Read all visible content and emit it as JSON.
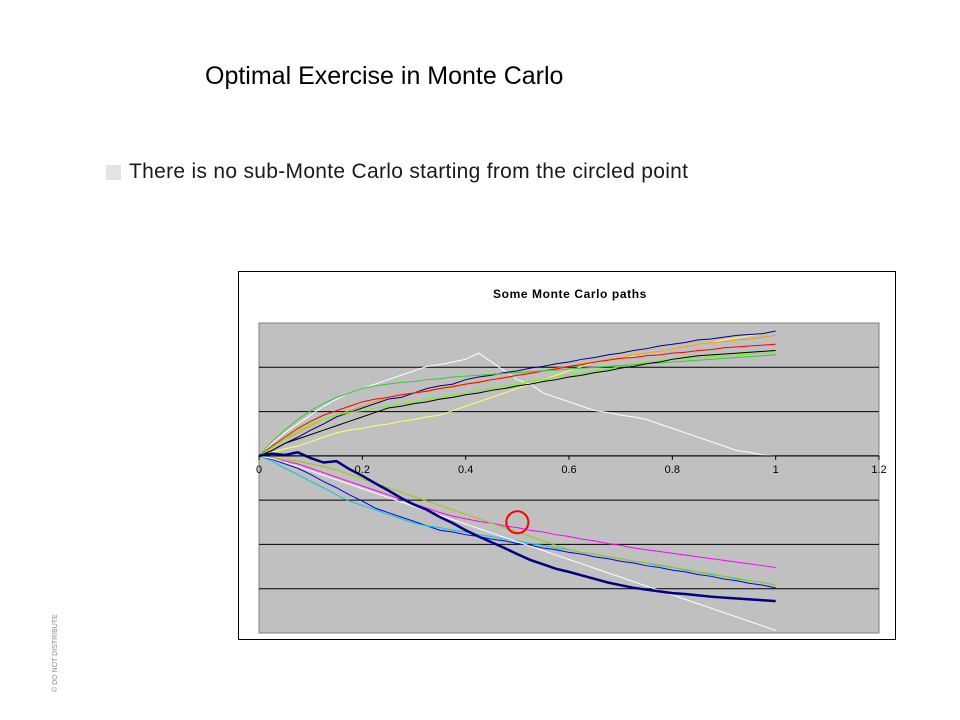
{
  "slide": {
    "title": "Optimal Exercise in Monte Carlo",
    "bullet": "There is no sub-Monte Carlo starting from the circled point",
    "side_note": "© DO NOT DISTRIBUTE"
  },
  "chart_data": {
    "type": "line",
    "title": "Some Monte Carlo paths",
    "xlabel": "",
    "ylabel": "",
    "xlim": [
      0,
      1.2
    ],
    "ylim": [
      -4,
      3
    ],
    "x_ticks": [
      "0",
      "0.2",
      "0.4",
      "0.6",
      "0.8",
      "1",
      "1.2"
    ],
    "grid": true,
    "legend": "none",
    "plot_background": "#c0c0c0",
    "n_steps": 40,
    "series": [
      {
        "color": "#ffffff",
        "values": [
          0,
          0.28,
          0.52,
          0.72,
          0.92,
          1.12,
          1.28,
          1.42,
          1.52,
          1.62,
          1.72,
          1.82,
          1.92,
          2.02,
          2.06,
          2.12,
          2.18,
          2.32,
          2.12,
          1.92,
          1.72,
          1.62,
          1.42,
          1.32,
          1.22,
          1.12,
          1.02,
          0.98,
          0.92,
          0.88,
          0.82,
          0.72,
          0.62,
          0.52,
          0.42,
          0.32,
          0.22,
          0.12,
          0.08,
          0.02,
          0
        ]
      },
      {
        "color": "#ffff66",
        "values": [
          0,
          0.08,
          0.16,
          0.22,
          0.32,
          0.42,
          0.52,
          0.58,
          0.62,
          0.68,
          0.72,
          0.78,
          0.82,
          0.88,
          0.92,
          1.02,
          1.12,
          1.22,
          1.32,
          1.42,
          1.52,
          1.62,
          1.72,
          1.82,
          1.92,
          2.02,
          2.12,
          2.16,
          2.22,
          2.26,
          2.32,
          2.36,
          2.42,
          2.46,
          2.52,
          2.56,
          2.62,
          2.66,
          2.72,
          2.76,
          2.82
        ]
      },
      {
        "color": "#000080",
        "values": [
          0,
          0.12,
          0.28,
          0.42,
          0.58,
          0.72,
          0.88,
          0.98,
          1.08,
          1.18,
          1.28,
          1.32,
          1.42,
          1.52,
          1.58,
          1.62,
          1.72,
          1.78,
          1.82,
          1.88,
          1.92,
          1.98,
          2.02,
          2.08,
          2.12,
          2.18,
          2.22,
          2.28,
          2.32,
          2.38,
          2.42,
          2.48,
          2.52,
          2.56,
          2.62,
          2.64,
          2.68,
          2.72,
          2.74,
          2.76,
          2.82
        ]
      },
      {
        "color": "#ff9900",
        "values": [
          0,
          0.18,
          0.38,
          0.52,
          0.68,
          0.82,
          0.92,
          1.02,
          1.12,
          1.22,
          1.32,
          1.38,
          1.42,
          1.48,
          1.52,
          1.58,
          1.62,
          1.68,
          1.72,
          1.78,
          1.82,
          1.88,
          1.92,
          1.98,
          2.02,
          2.08,
          2.12,
          2.18,
          2.22,
          2.28,
          2.32,
          2.36,
          2.42,
          2.46,
          2.52,
          2.56,
          2.58,
          2.62,
          2.64,
          2.68,
          2.72
        ]
      },
      {
        "color": "#ff0000",
        "values": [
          0,
          0.22,
          0.42,
          0.62,
          0.78,
          0.92,
          1.02,
          1.12,
          1.22,
          1.28,
          1.32,
          1.38,
          1.42,
          1.46,
          1.52,
          1.56,
          1.62,
          1.66,
          1.72,
          1.76,
          1.82,
          1.86,
          1.92,
          1.96,
          2.02,
          2.06,
          2.12,
          2.16,
          2.2,
          2.22,
          2.26,
          2.28,
          2.32,
          2.34,
          2.38,
          2.4,
          2.44,
          2.46,
          2.48,
          2.5,
          2.52
        ]
      },
      {
        "color": "#66ff00",
        "values": [
          0,
          0.18,
          0.38,
          0.58,
          0.72,
          0.82,
          0.92,
          0.98,
          1.02,
          1.08,
          1.12,
          1.18,
          1.22,
          1.28,
          1.32,
          1.38,
          1.42,
          1.48,
          1.52,
          1.58,
          1.62,
          1.68,
          1.72,
          1.78,
          1.82,
          1.86,
          1.92,
          1.96,
          2.02,
          2.06,
          2.12,
          2.14,
          2.18,
          2.2,
          2.22,
          2.24,
          2.26,
          2.28,
          2.3,
          2.32,
          2.32
        ]
      },
      {
        "color": "#33cc33",
        "values": [
          0,
          0.32,
          0.58,
          0.82,
          1.02,
          1.18,
          1.32,
          1.42,
          1.52,
          1.58,
          1.62,
          1.66,
          1.68,
          1.72,
          1.74,
          1.78,
          1.8,
          1.82,
          1.84,
          1.86,
          1.88,
          1.9,
          1.92,
          1.94,
          1.96,
          1.98,
          2.0,
          2.02,
          2.04,
          2.06,
          2.08,
          2.1,
          2.12,
          2.14,
          2.16,
          2.18,
          2.2,
          2.22,
          2.24,
          2.26,
          2.28
        ]
      },
      {
        "color": "#000000",
        "values": [
          0,
          0.12,
          0.28,
          0.38,
          0.48,
          0.58,
          0.68,
          0.78,
          0.88,
          0.98,
          1.08,
          1.12,
          1.18,
          1.22,
          1.28,
          1.32,
          1.38,
          1.42,
          1.48,
          1.52,
          1.58,
          1.62,
          1.68,
          1.72,
          1.78,
          1.82,
          1.88,
          1.92,
          1.98,
          2.02,
          2.08,
          2.12,
          2.18,
          2.22,
          2.26,
          2.28,
          2.3,
          2.32,
          2.34,
          2.36,
          2.38
        ]
      },
      {
        "color": "#0000ff",
        "values": [
          0,
          -0.08,
          -0.18,
          -0.28,
          -0.42,
          -0.58,
          -0.72,
          -0.88,
          -1.02,
          -1.18,
          -1.28,
          -1.38,
          -1.48,
          -1.58,
          -1.68,
          -1.72,
          -1.78,
          -1.82,
          -1.88,
          -1.92,
          -1.98,
          -2.02,
          -2.08,
          -2.12,
          -2.18,
          -2.22,
          -2.28,
          -2.32,
          -2.38,
          -2.42,
          -2.48,
          -2.52,
          -2.58,
          -2.62,
          -2.68,
          -2.72,
          -2.78,
          -2.82,
          -2.88,
          -2.92,
          -2.98
        ]
      },
      {
        "color": "#00cccc",
        "values": [
          0,
          -0.12,
          -0.28,
          -0.42,
          -0.58,
          -0.72,
          -0.88,
          -1.02,
          -1.12,
          -1.22,
          -1.32,
          -1.42,
          -1.52,
          -1.58,
          -1.62,
          -1.68,
          -1.72,
          -1.78,
          -1.82,
          -1.88,
          -1.92,
          -1.98,
          -2.02,
          -2.08,
          -2.12,
          -2.18,
          -2.22,
          -2.28,
          -2.32,
          -2.38,
          -2.42,
          -2.48,
          -2.52,
          -2.58,
          -2.62,
          -2.68,
          -2.72,
          -2.78,
          -2.82,
          -2.86,
          -2.92
        ]
      },
      {
        "color": "#ff00ff",
        "values": [
          0,
          -0.06,
          -0.12,
          -0.18,
          -0.28,
          -0.38,
          -0.48,
          -0.58,
          -0.68,
          -0.78,
          -0.88,
          -0.98,
          -1.08,
          -1.18,
          -1.28,
          -1.36,
          -1.42,
          -1.48,
          -1.52,
          -1.58,
          -1.62,
          -1.68,
          -1.72,
          -1.78,
          -1.82,
          -1.88,
          -1.92,
          -1.98,
          -2.02,
          -2.08,
          -2.12,
          -2.16,
          -2.2,
          -2.24,
          -2.28,
          -2.32,
          -2.36,
          -2.4,
          -2.44,
          -2.48,
          -2.52
        ]
      },
      {
        "color": "#99cc00",
        "values": [
          0,
          -0.04,
          -0.08,
          -0.12,
          -0.18,
          -0.24,
          -0.32,
          -0.42,
          -0.52,
          -0.62,
          -0.72,
          -0.82,
          -0.92,
          -1.02,
          -1.12,
          -1.22,
          -1.32,
          -1.42,
          -1.52,
          -1.62,
          -1.72,
          -1.82,
          -1.92,
          -2.02,
          -2.12,
          -2.18,
          -2.22,
          -2.28,
          -2.32,
          -2.38,
          -2.42,
          -2.46,
          -2.52,
          -2.56,
          -2.62,
          -2.66,
          -2.72,
          -2.76,
          -2.82,
          -2.86,
          -2.92
        ]
      },
      {
        "color": "#ffffff",
        "values": [
          0,
          -0.06,
          -0.14,
          -0.24,
          -0.34,
          -0.44,
          -0.54,
          -0.64,
          -0.74,
          -0.84,
          -0.94,
          -1.04,
          -1.14,
          -1.24,
          -1.34,
          -1.44,
          -1.54,
          -1.64,
          -1.74,
          -1.84,
          -1.94,
          -2.04,
          -2.14,
          -2.24,
          -2.34,
          -2.44,
          -2.54,
          -2.64,
          -2.74,
          -2.84,
          -2.94,
          -3.04,
          -3.14,
          -3.24,
          -3.34,
          -3.44,
          -3.54,
          -3.64,
          -3.74,
          -3.84,
          -3.94
        ]
      },
      {
        "color": "#000080",
        "width": 2.5,
        "values": [
          0,
          0.05,
          0.02,
          0.08,
          -0.05,
          -0.15,
          -0.12,
          -0.3,
          -0.45,
          -0.62,
          -0.78,
          -0.95,
          -1.1,
          -1.22,
          -1.38,
          -1.52,
          -1.68,
          -1.82,
          -1.95,
          -2.08,
          -2.22,
          -2.35,
          -2.45,
          -2.55,
          -2.62,
          -2.7,
          -2.78,
          -2.86,
          -2.92,
          -2.98,
          -3.02,
          -3.06,
          -3.1,
          -3.12,
          -3.15,
          -3.18,
          -3.2,
          -3.22,
          -3.24,
          -3.26,
          -3.28
        ]
      }
    ],
    "annotations": [
      {
        "type": "circle",
        "x": 0.5,
        "y": -1.5,
        "color": "#ff0000"
      }
    ]
  }
}
